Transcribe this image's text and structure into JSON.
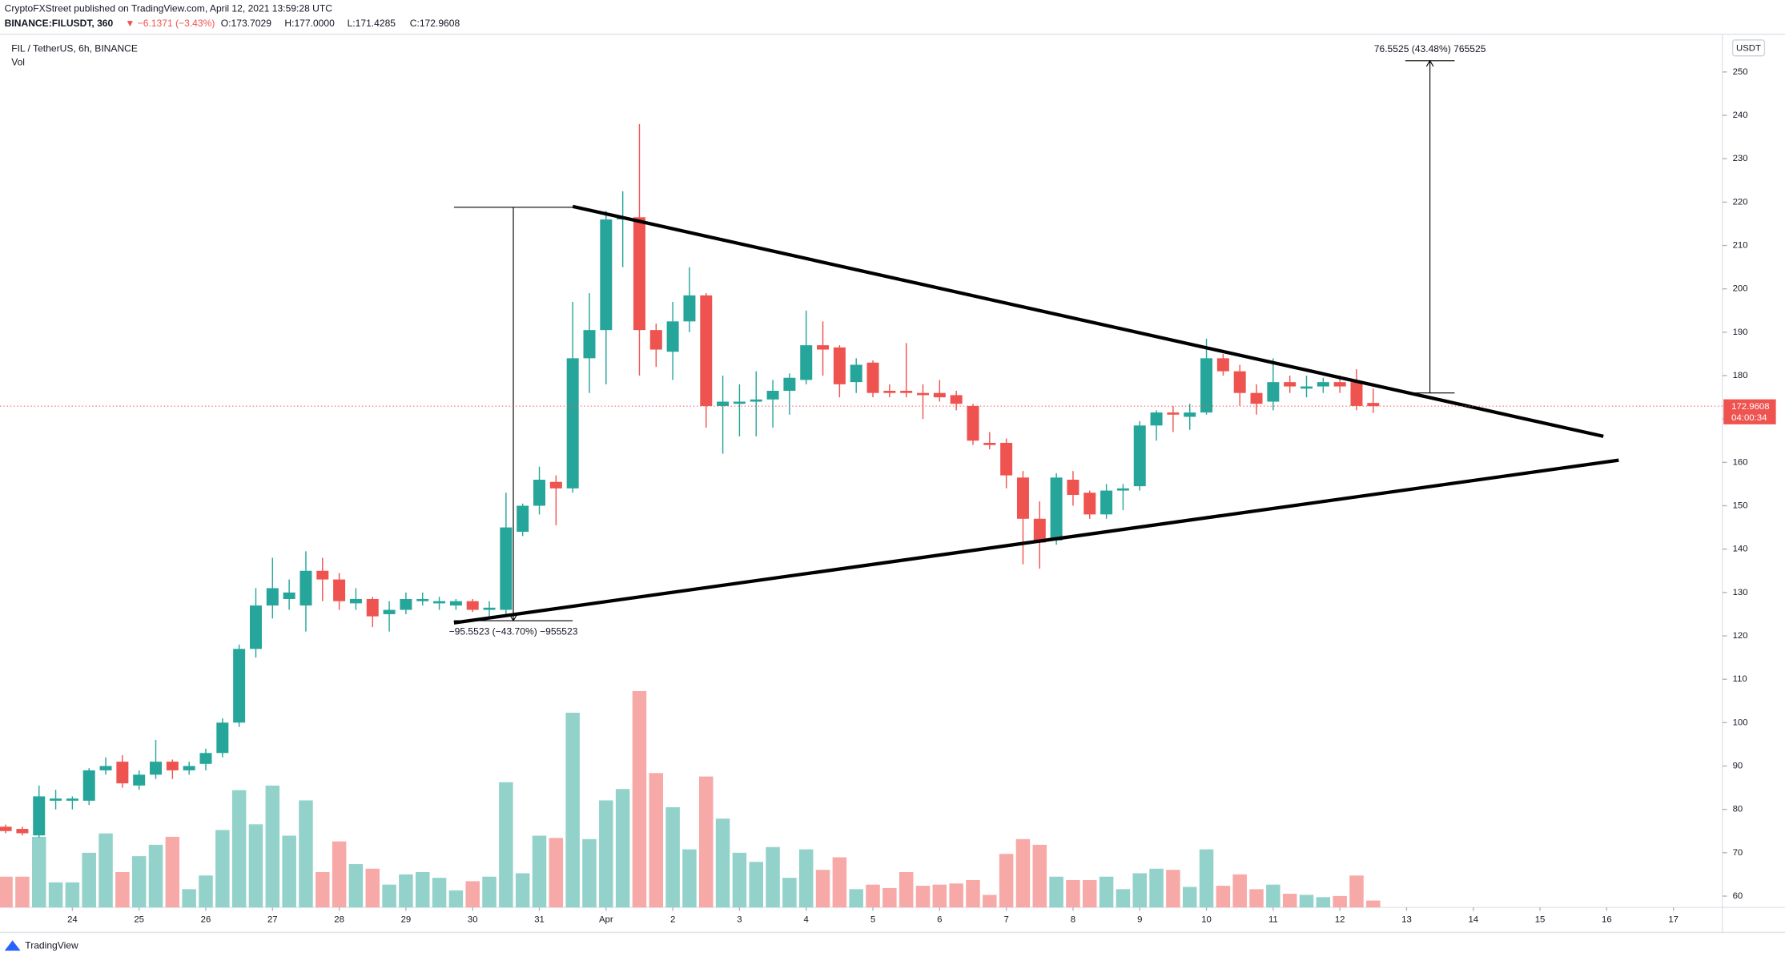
{
  "header": {
    "publisher": "CryptoFXStreet published on TradingView.com, April 12, 2021 13:59:28 UTC",
    "symbol": "BINANCE:FILUSDT, 360",
    "change": "▼ −6.1371 (−3.43%)",
    "ohlc": [
      "O:173.7029",
      "H:177.0000",
      "L:171.4285",
      "C:172.9608"
    ]
  },
  "chart_data": {
    "type": "candlestick",
    "title": "FIL / TetherUS, 6h, BINANCE",
    "currency": "USDT",
    "up_color": "#26a69a",
    "down_color": "#ef5350",
    "volume_up_color": "#92d2ca",
    "volume_down_color": "#f7a9a7",
    "x": [
      23,
      23.25,
      23.5,
      23.75,
      24,
      24.25,
      24.5,
      24.75,
      25,
      25.25,
      25.5,
      25.75,
      26,
      26.25,
      26.5,
      26.75,
      27,
      27.25,
      27.5,
      27.75,
      28,
      28.25,
      28.5,
      28.75,
      29,
      29.25,
      29.5,
      29.75,
      30,
      30.25,
      30.5,
      30.75,
      31,
      31.25,
      31.5,
      31.75,
      32,
      32.25,
      32.5,
      32.75,
      33,
      33.25,
      33.5,
      33.75,
      34,
      34.25,
      34.5,
      34.75,
      35,
      35.25,
      35.5,
      35.75,
      36,
      36.25,
      36.5,
      36.75,
      37,
      37.25,
      37.5,
      37.75,
      38,
      38.25,
      38.5,
      38.75,
      39,
      39.25,
      39.5,
      39.75,
      40,
      40.25,
      40.5,
      40.75,
      41,
      41.25,
      41.5,
      41.75,
      42,
      42.25,
      42.5,
      42.75,
      43,
      43.25,
      43.5
    ],
    "open": [
      76,
      75.5,
      74,
      82,
      82,
      82,
      89,
      91,
      85.5,
      88,
      91,
      89,
      90.5,
      93,
      100,
      117,
      127,
      128.5,
      127,
      135,
      133,
      127.5,
      128.5,
      125,
      126,
      128,
      127.5,
      127,
      128,
      126,
      126,
      144,
      150,
      155.5,
      154,
      184,
      190.5,
      216,
      216.5,
      190.5,
      185.5,
      192.5,
      198.5,
      173,
      173.5,
      174,
      174.5,
      176.5,
      179,
      187,
      186.5,
      178.5,
      183,
      176.5,
      176.5,
      176,
      176,
      175.5,
      173,
      164.5,
      164.5,
      156.5,
      147,
      142,
      156,
      153,
      148,
      153.5,
      154.5,
      168.5,
      171.5,
      170.5,
      171.5,
      184,
      181,
      176,
      174,
      178.5,
      177,
      177.5,
      178.5,
      178.5,
      173.7029
    ],
    "high": [
      76.5,
      76,
      85.5,
      84.5,
      83,
      89.5,
      92,
      92.5,
      89,
      96,
      91.5,
      91,
      94,
      101,
      118,
      131,
      138,
      133,
      139.5,
      138,
      134.5,
      131,
      129,
      128,
      130,
      130,
      129,
      128.5,
      128.5,
      128,
      153,
      150.5,
      159,
      157,
      197,
      199,
      218,
      222.5,
      238,
      192,
      197,
      205,
      199,
      180,
      178,
      181,
      179,
      180.5,
      195,
      192.5,
      187,
      184,
      183.5,
      178,
      187.5,
      178,
      179,
      176.5,
      173.5,
      167,
      165.5,
      158,
      151,
      157.5,
      158,
      153.5,
      155,
      155,
      169.5,
      172,
      173,
      173.5,
      188.5,
      185,
      182.5,
      178,
      184,
      180,
      180,
      179.5,
      180,
      181.5,
      177
    ],
    "low": [
      74.5,
      74,
      73.5,
      80,
      80,
      81,
      88,
      85,
      84.5,
      87,
      87,
      88,
      89,
      92,
      99,
      115,
      124,
      126,
      121,
      128,
      126,
      126,
      122,
      121,
      125,
      127,
      126,
      126,
      125.5,
      124,
      125,
      143,
      148,
      145.5,
      153,
      176,
      178,
      205,
      180,
      182,
      179,
      190,
      168,
      162,
      166,
      166,
      168,
      171,
      178,
      180,
      175,
      176,
      175,
      175,
      175,
      170,
      174,
      172,
      164,
      163,
      154,
      136.5,
      135.5,
      141,
      150,
      147,
      147,
      149,
      153.5,
      165,
      167,
      167.5,
      171,
      180,
      173,
      171,
      172,
      176,
      175,
      176,
      176,
      172,
      171.4285
    ],
    "close": [
      75,
      74.5,
      83,
      82.5,
      82.5,
      89,
      90,
      86,
      88,
      91,
      89,
      90,
      93,
      100,
      117,
      127,
      131,
      130,
      135,
      133,
      128,
      128.5,
      124.5,
      126,
      128.5,
      128.5,
      128,
      128,
      126,
      126.5,
      145,
      150,
      156,
      154,
      184,
      190.5,
      216,
      216.5,
      190.5,
      186,
      192.5,
      198.5,
      173,
      174,
      174,
      174.5,
      176.5,
      179.5,
      187,
      186,
      178,
      182.5,
      176,
      176,
      176,
      175.5,
      175,
      173.5,
      165,
      164,
      157,
      147,
      141.5,
      156.5,
      152.5,
      148,
      153.5,
      154,
      168.5,
      171.5,
      171,
      171.5,
      184,
      181,
      176,
      173.5,
      178.5,
      177.5,
      177.5,
      178.5,
      177.5,
      173,
      172.9608
    ],
    "volume": {
      "name": "Vol",
      "values": [
        27,
        27,
        62,
        22,
        22,
        48,
        65,
        31,
        45,
        55,
        62,
        16,
        28,
        68,
        103,
        73,
        107,
        63,
        94,
        31,
        58,
        38,
        34,
        20,
        29,
        31,
        26,
        15,
        23,
        27,
        110,
        30,
        63,
        61,
        171,
        60,
        94,
        104,
        190,
        118,
        88,
        51,
        115,
        78,
        48,
        40,
        53,
        26,
        51,
        33,
        44,
        16,
        20,
        17,
        31,
        19,
        20,
        21,
        24,
        11,
        47,
        60,
        55,
        27,
        24,
        24,
        27,
        16,
        30,
        34,
        33,
        18,
        51,
        19,
        29,
        16,
        20,
        12,
        11,
        9,
        10,
        28,
        6
      ]
    },
    "ylim": [
      57.4,
      258.7
    ],
    "yticks": [
      60,
      70,
      80,
      90,
      100,
      110,
      120,
      130,
      140,
      150,
      160,
      170,
      180,
      190,
      200,
      210,
      220,
      230,
      240,
      250
    ],
    "xlim": [
      22.915,
      48.734
    ],
    "xticks": [
      {
        "value": 24,
        "label": "24"
      },
      {
        "value": 25,
        "label": "25"
      },
      {
        "value": 26,
        "label": "26"
      },
      {
        "value": 27,
        "label": "27"
      },
      {
        "value": 28,
        "label": "28"
      },
      {
        "value": 29,
        "label": "29"
      },
      {
        "value": 30,
        "label": "30"
      },
      {
        "value": 31,
        "label": "31"
      },
      {
        "value": 32,
        "label": "Apr"
      },
      {
        "value": 33,
        "label": "2"
      },
      {
        "value": 34,
        "label": "3"
      },
      {
        "value": 35,
        "label": "4"
      },
      {
        "value": 36,
        "label": "5"
      },
      {
        "value": 37,
        "label": "6"
      },
      {
        "value": 38,
        "label": "7"
      },
      {
        "value": 39,
        "label": "8"
      },
      {
        "value": 40,
        "label": "9"
      },
      {
        "value": 41,
        "label": "10"
      },
      {
        "value": 42,
        "label": "11"
      },
      {
        "value": 43,
        "label": "12"
      },
      {
        "value": 44,
        "label": "13"
      },
      {
        "value": 45,
        "label": "14"
      },
      {
        "value": 46,
        "label": "15"
      },
      {
        "value": 47,
        "label": "16"
      },
      {
        "value": 48,
        "label": "17"
      }
    ],
    "last_price": 172.9608,
    "countdown": "04:00:34",
    "trendlines": [
      {
        "x": [
          31.5,
          46.95
        ],
        "y": [
          219.0,
          166.0
        ]
      },
      {
        "x": [
          29.72,
          47.18
        ],
        "y": [
          123.0,
          160.5
        ]
      }
    ],
    "measurements": [
      {
        "label": "−95.5523 (−43.70%) −955523",
        "x": [
          29.72,
          31.5
        ],
        "from": 218.8,
        "to": 123.5
      },
      {
        "label": "76.5525 (43.48%) 765525",
        "x": [
          43.98,
          44.72
        ],
        "from": 176.0,
        "to": 252.6
      }
    ]
  },
  "footer": {
    "brand": "TradingView"
  }
}
